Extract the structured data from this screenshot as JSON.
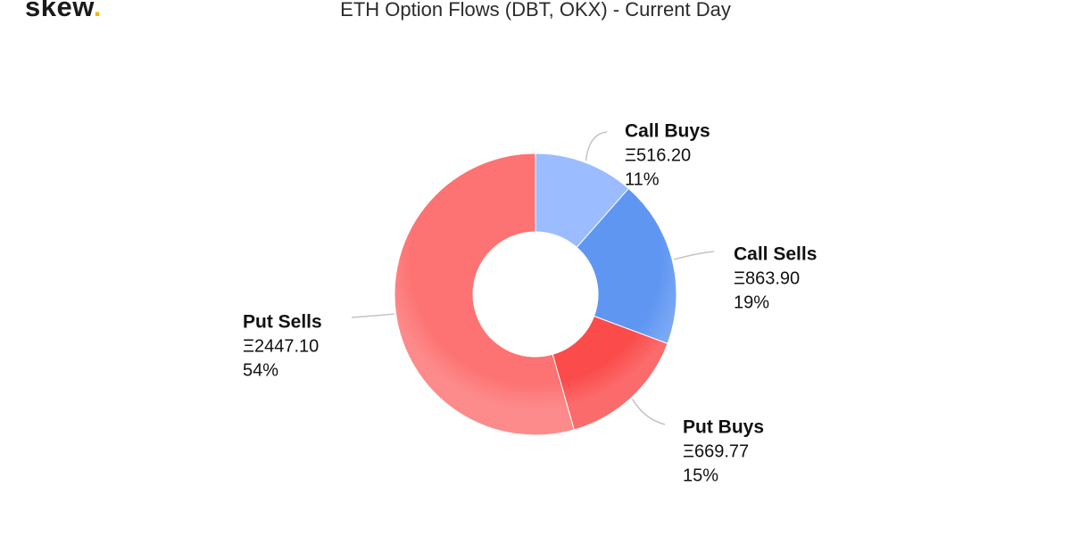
{
  "header": {
    "logo_text": "skew",
    "logo_dot": ".",
    "logo_dot_color": "#f2b705",
    "title": "ETH Option Flows (DBT, OKX) - Current Day"
  },
  "chart_data": {
    "type": "pie",
    "variant": "donut",
    "title": "ETH Option Flows (DBT, OKX) - Current Day",
    "unit_symbol": "Ξ",
    "legend": "none",
    "slices": [
      {
        "name": "Call Buys",
        "value": 516.2,
        "value_label": "Ξ516.20",
        "percent_label": "11%",
        "color": "#9bbcff"
      },
      {
        "name": "Call Sells",
        "value": 863.9,
        "value_label": "Ξ863.90",
        "percent_label": "19%",
        "color": "#5f96f2"
      },
      {
        "name": "Put Buys",
        "value": 669.77,
        "value_label": "Ξ669.77",
        "percent_label": "15%",
        "color": "#fb4b4b"
      },
      {
        "name": "Put Sells",
        "value": 2447.1,
        "value_label": "Ξ2447.10",
        "percent_label": "54%",
        "color": "#fd7272"
      }
    ]
  }
}
